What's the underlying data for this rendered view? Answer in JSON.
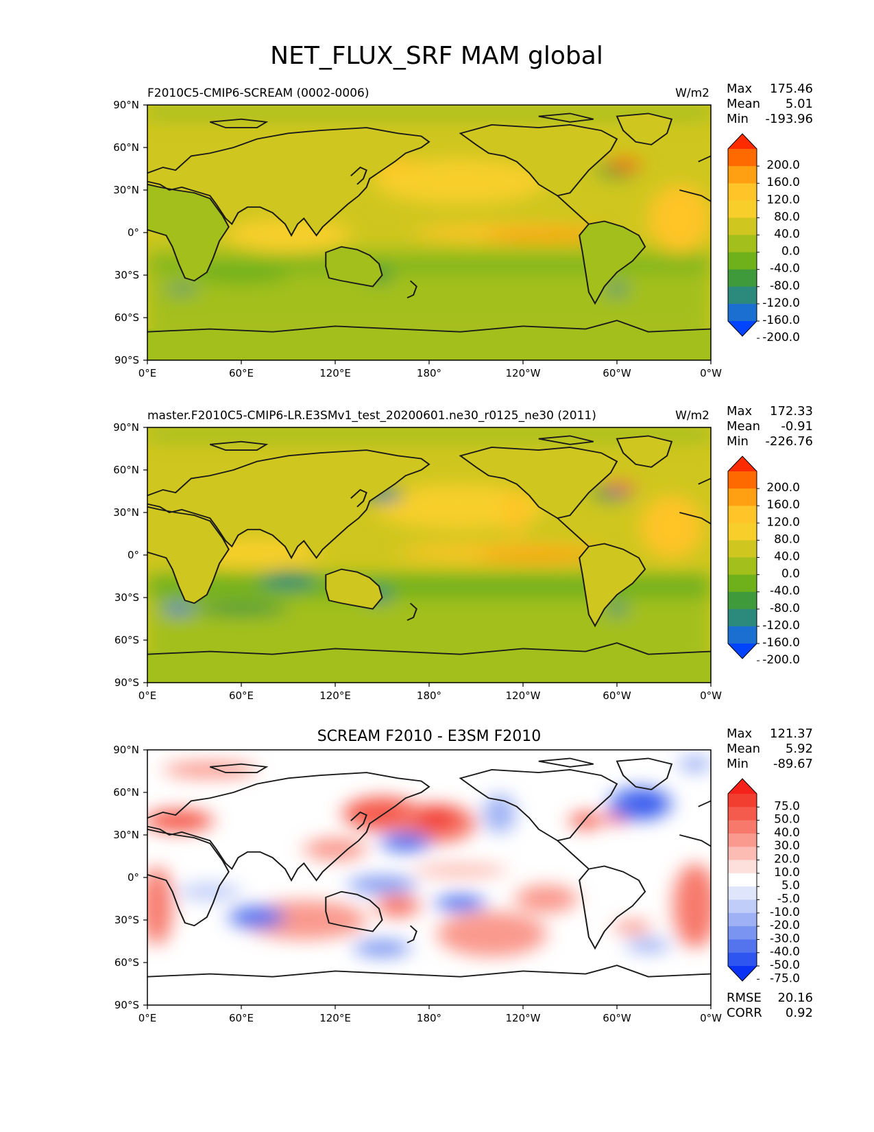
{
  "figure": {
    "title": "NET_FLUX_SRF MAM global"
  },
  "chart_data": [
    {
      "type": "heatmap",
      "panel": "test",
      "title": "F2010C5-CMIP6-SCREAM (0002-0006)",
      "units": "W/m2",
      "stats": {
        "max_label": "Max",
        "max": "175.46",
        "mean_label": "Mean",
        "mean": "5.01",
        "min_label": "Min",
        "min": "-193.96"
      },
      "x_ticks": [
        "0°E",
        "60°E",
        "120°E",
        "180°",
        "120°W",
        "60°W",
        "0°W"
      ],
      "y_ticks": [
        "90°N",
        "60°N",
        "30°N",
        "0°",
        "30°S",
        "60°S",
        "90°S"
      ],
      "xlim": [
        0,
        360
      ],
      "ylim": [
        -90,
        90
      ],
      "colorbar": {
        "levels": [
          "200.0",
          "160.0",
          "120.0",
          "80.0",
          "40.0",
          "0.0",
          "-40.0",
          "-80.0",
          "-120.0",
          "-160.0",
          "-200.0"
        ],
        "colors": [
          "#fe2a00",
          "#ff6a00",
          "#ff9f11",
          "#ffc428",
          "#f8cf2a",
          "#cfc61f",
          "#a3bf1c",
          "#6fb11b",
          "#3f9a3c",
          "#2c8a7c",
          "#1a6fd0",
          "#0044ff"
        ],
        "extend": "both"
      }
    },
    {
      "type": "heatmap",
      "panel": "reference",
      "title": "master.F2010C5-CMIP6-LR.E3SMv1_test_20200601.ne30_r0125_ne30 (2011)",
      "units": "W/m2",
      "stats": {
        "max_label": "Max",
        "max": "172.33",
        "mean_label": "Mean",
        "mean": "-0.91",
        "min_label": "Min",
        "min": "-226.76"
      },
      "x_ticks": [
        "0°E",
        "60°E",
        "120°E",
        "180°",
        "120°W",
        "60°W",
        "0°W"
      ],
      "y_ticks": [
        "90°N",
        "60°N",
        "30°N",
        "0°",
        "30°S",
        "60°S",
        "90°S"
      ],
      "xlim": [
        0,
        360
      ],
      "ylim": [
        -90,
        90
      ],
      "colorbar": {
        "levels": [
          "200.0",
          "160.0",
          "120.0",
          "80.0",
          "40.0",
          "0.0",
          "-40.0",
          "-80.0",
          "-120.0",
          "-160.0",
          "-200.0"
        ],
        "colors": [
          "#fe2a00",
          "#ff6a00",
          "#ff9f11",
          "#ffc428",
          "#f8cf2a",
          "#cfc61f",
          "#a3bf1c",
          "#6fb11b",
          "#3f9a3c",
          "#2c8a7c",
          "#1a6fd0",
          "#0044ff"
        ],
        "extend": "both"
      }
    },
    {
      "type": "heatmap",
      "panel": "difference",
      "title": "SCREAM F2010 - E3SM F2010",
      "units": "",
      "stats": {
        "max_label": "Max",
        "max": "121.37",
        "mean_label": "Mean",
        "mean": "5.92",
        "min_label": "Min",
        "min": "-89.67"
      },
      "extra_stats": {
        "rmse_label": "RMSE",
        "rmse": "20.16",
        "corr_label": "CORR",
        "corr": "0.92"
      },
      "x_ticks": [
        "0°E",
        "60°E",
        "120°E",
        "180°",
        "120°W",
        "60°W",
        "0°W"
      ],
      "y_ticks": [
        "90°N",
        "60°N",
        "30°N",
        "0°",
        "30°S",
        "60°S",
        "90°S"
      ],
      "xlim": [
        0,
        360
      ],
      "ylim": [
        -90,
        90
      ],
      "colorbar": {
        "levels": [
          "75.0",
          "50.0",
          "40.0",
          "30.0",
          "20.0",
          "10.0",
          "5.0",
          "-5.0",
          "-10.0",
          "-20.0",
          "-30.0",
          "-40.0",
          "-50.0",
          "-75.0"
        ],
        "colors": [
          "#f5221c",
          "#f23d31",
          "#f55b4d",
          "#f7796c",
          "#fa9a8e",
          "#fdbcb3",
          "#fde0dc",
          "#ffffff",
          "#dfe6fb",
          "#c0cdf8",
          "#9db1f4",
          "#7a95f1",
          "#5474ee",
          "#2f55f0",
          "#0a32f5"
        ],
        "extend": "both"
      }
    }
  ]
}
